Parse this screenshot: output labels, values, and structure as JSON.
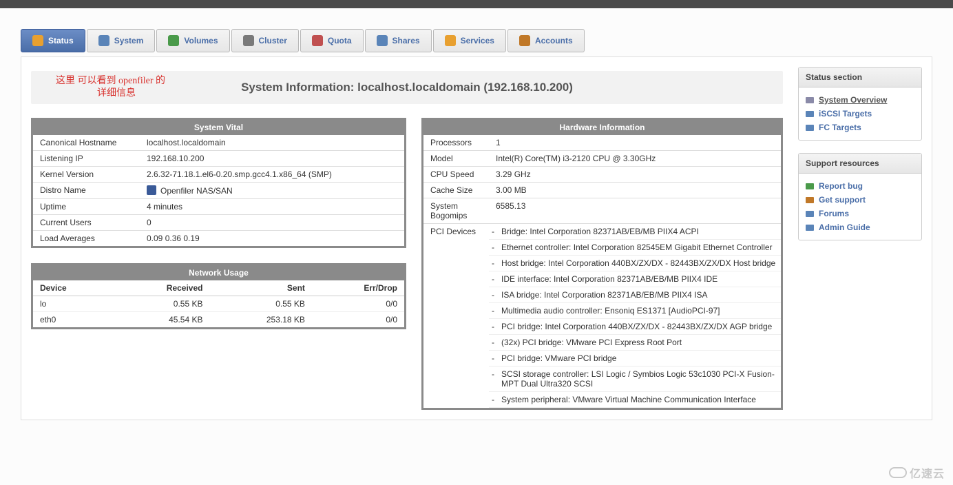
{
  "tabs": [
    {
      "label": "Status",
      "icon": "#e8a030"
    },
    {
      "label": "System",
      "icon": "#5a84b8"
    },
    {
      "label": "Volumes",
      "icon": "#4a9a4a"
    },
    {
      "label": "Cluster",
      "icon": "#7a7a7a"
    },
    {
      "label": "Quota",
      "icon": "#c05050"
    },
    {
      "label": "Shares",
      "icon": "#5a84b8"
    },
    {
      "label": "Services",
      "icon": "#e8a030"
    },
    {
      "label": "Accounts",
      "icon": "#c07828"
    }
  ],
  "banner": {
    "title": "System Information: localhost.localdomain (192.168.10.200)",
    "annotation_line1": "这里 可以看到 openfiler 的",
    "annotation_line2": "详细信息"
  },
  "system_vital": {
    "title": "System Vital",
    "rows": [
      {
        "k": "Canonical Hostname",
        "v": "localhost.localdomain"
      },
      {
        "k": "Listening IP",
        "v": "192.168.10.200"
      },
      {
        "k": "Kernel Version",
        "v": "2.6.32-71.18.1.el6-0.20.smp.gcc4.1.x86_64 (SMP)"
      },
      {
        "k": "Distro Name",
        "v": "Openfiler NAS/SAN",
        "icon": true
      },
      {
        "k": "Uptime",
        "v": "4 minutes"
      },
      {
        "k": "Current Users",
        "v": "0"
      },
      {
        "k": "Load Averages",
        "v": "0.09 0.36 0.19"
      }
    ]
  },
  "network_usage": {
    "title": "Network Usage",
    "headers": {
      "device": "Device",
      "received": "Received",
      "sent": "Sent",
      "errdrop": "Err/Drop"
    },
    "rows": [
      {
        "device": "lo",
        "received": "0.55 KB",
        "sent": "0.55 KB",
        "errdrop": "0/0"
      },
      {
        "device": "eth0",
        "received": "45.54 KB",
        "sent": "253.18 KB",
        "errdrop": "0/0"
      }
    ]
  },
  "hardware_info": {
    "title": "Hardware Information",
    "rows": [
      {
        "k": "Processors",
        "v": "1"
      },
      {
        "k": "Model",
        "v": "Intel(R) Core(TM) i3-2120 CPU @ 3.30GHz"
      },
      {
        "k": "CPU Speed",
        "v": "3.29 GHz"
      },
      {
        "k": "Cache Size",
        "v": "3.00 MB"
      },
      {
        "k": "System Bogomips",
        "v": "6585.13"
      }
    ],
    "pci_label": "PCI Devices",
    "pci": [
      "Bridge: Intel Corporation 82371AB/EB/MB PIIX4 ACPI",
      "Ethernet controller: Intel Corporation 82545EM Gigabit Ethernet Controller",
      "Host bridge: Intel Corporation 440BX/ZX/DX - 82443BX/ZX/DX Host bridge",
      "IDE interface: Intel Corporation 82371AB/EB/MB PIIX4 IDE",
      "ISA bridge: Intel Corporation 82371AB/EB/MB PIIX4 ISA",
      "Multimedia audio controller: Ensoniq ES1371 [AudioPCI-97]",
      "PCI bridge: Intel Corporation 440BX/ZX/DX - 82443BX/ZX/DX AGP bridge",
      "(32x) PCI bridge: VMware PCI Express Root Port",
      "PCI bridge: VMware PCI bridge",
      "SCSI storage controller: LSI Logic / Symbios Logic 53c1030 PCI-X Fusion-MPT Dual Ultra320 SCSI",
      "System peripheral: VMware Virtual Machine Communication Interface"
    ]
  },
  "status_section": {
    "title": "Status section",
    "items": [
      {
        "label": "System Overview",
        "color": "#8a8aa8",
        "current": true
      },
      {
        "label": "iSCSI Targets",
        "color": "#5a84b8",
        "current": false
      },
      {
        "label": "FC Targets",
        "color": "#5a84b8",
        "current": false
      }
    ]
  },
  "support": {
    "title": "Support resources",
    "items": [
      {
        "label": "Report bug",
        "color": "#4a9a4a"
      },
      {
        "label": "Get support",
        "color": "#c07828"
      },
      {
        "label": "Forums",
        "color": "#5a84b8"
      },
      {
        "label": "Admin Guide",
        "color": "#5a84b8"
      }
    ]
  },
  "watermark": "亿速云"
}
